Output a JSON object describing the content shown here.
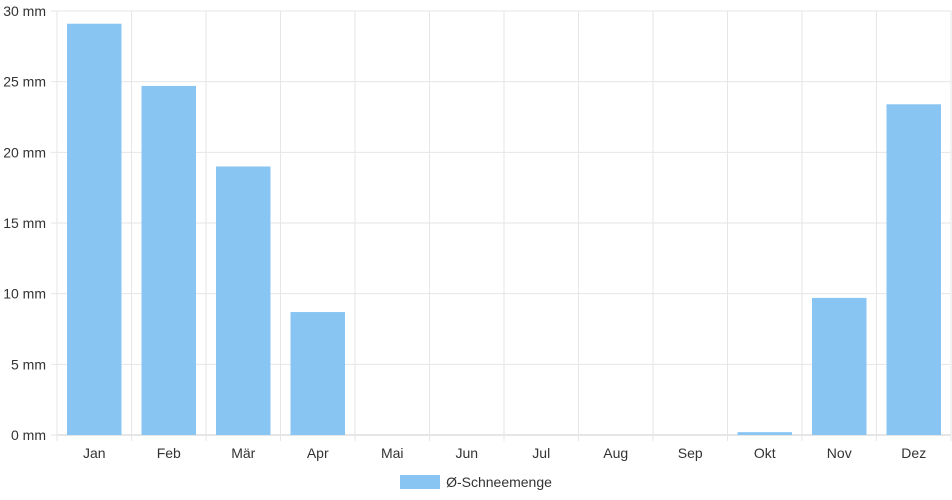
{
  "chart_data": {
    "type": "bar",
    "categories": [
      "Jan",
      "Feb",
      "Mär",
      "Apr",
      "Mai",
      "Jun",
      "Jul",
      "Aug",
      "Sep",
      "Okt",
      "Nov",
      "Dez"
    ],
    "series": [
      {
        "name": "Ø-Schneemenge",
        "values": [
          29.1,
          24.7,
          19.0,
          8.7,
          0,
          0,
          0,
          0,
          0,
          0.2,
          9.7,
          23.4
        ],
        "color": "#89c5f2"
      }
    ],
    "y_ticks": [
      "0 mm",
      "5 mm",
      "10 mm",
      "15 mm",
      "20 mm",
      "25 mm",
      "30 mm"
    ],
    "ylim": [
      0,
      30
    ],
    "y_unit": "mm",
    "grid": true,
    "legend_position": "bottom"
  }
}
